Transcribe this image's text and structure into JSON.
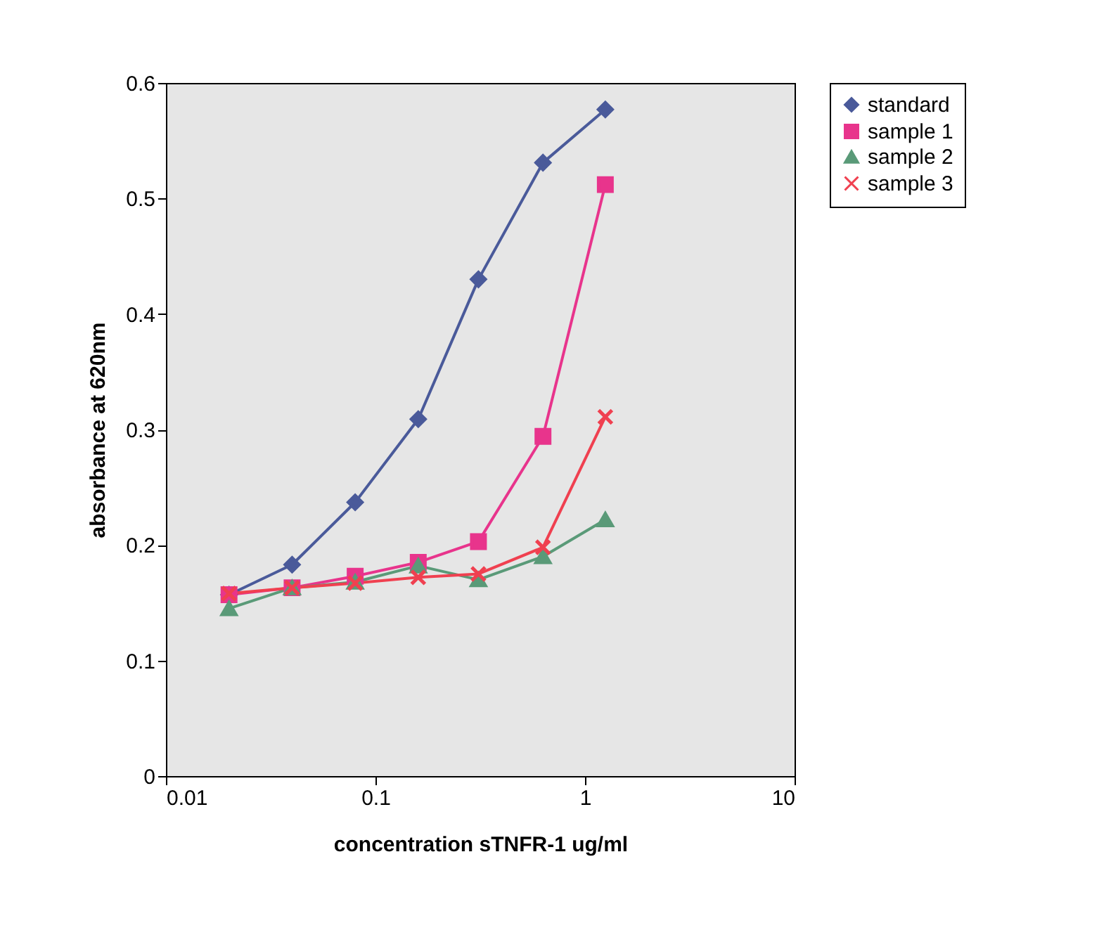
{
  "chart_data": {
    "type": "line",
    "xlabel": "concentration sTNFR-1 ug/ml",
    "ylabel": "absorbance at 620nm",
    "x": [
      0.02,
      0.04,
      0.08,
      0.16,
      0.31,
      0.63,
      1.25
    ],
    "series": [
      {
        "name": "standard",
        "color": "#4a5a9a",
        "marker": "diamond",
        "values": [
          0.157,
          0.183,
          0.237,
          0.309,
          0.43,
          0.531,
          0.577
        ]
      },
      {
        "name": "sample 1",
        "color": "#e8348c",
        "marker": "square",
        "values": [
          0.157,
          0.163,
          0.173,
          0.185,
          0.203,
          0.294,
          0.512
        ]
      },
      {
        "name": "sample 2",
        "color": "#5a9a78",
        "marker": "triangle",
        "values": [
          0.145,
          0.163,
          0.168,
          0.182,
          0.17,
          0.19,
          0.222
        ]
      },
      {
        "name": "sample 3",
        "color": "#f04050",
        "marker": "cross",
        "values": [
          0.158,
          0.163,
          0.167,
          0.172,
          0.175,
          0.198,
          0.311
        ]
      }
    ],
    "log": "x",
    "xlim": [
      0.01,
      10
    ],
    "xticks": [
      0.01,
      0.1,
      1,
      10
    ],
    "ylim": [
      0,
      0.6
    ],
    "yticks": [
      0,
      0.1,
      0.2,
      0.3,
      0.4,
      0.5,
      0.6
    ],
    "grid": false,
    "legend": "right"
  }
}
